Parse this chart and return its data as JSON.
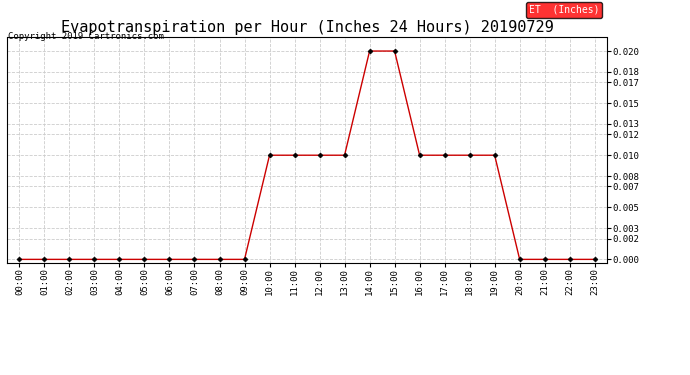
{
  "title": "Evapotranspiration per Hour (Inches 24 Hours) 20190729",
  "copyright": "Copyright 2019 Cartronics.com",
  "legend_label": "ET  (Inches)",
  "legend_bg": "#ff0000",
  "legend_text_color": "#ffffff",
  "line_color": "#cc0000",
  "marker_color": "#000000",
  "background_color": "#ffffff",
  "grid_color": "#cccccc",
  "hours": [
    "00:00",
    "01:00",
    "02:00",
    "03:00",
    "04:00",
    "05:00",
    "06:00",
    "07:00",
    "08:00",
    "09:00",
    "10:00",
    "11:00",
    "12:00",
    "13:00",
    "14:00",
    "15:00",
    "16:00",
    "17:00",
    "18:00",
    "19:00",
    "20:00",
    "21:00",
    "22:00",
    "23:00"
  ],
  "values": [
    0.0,
    0.0,
    0.0,
    0.0,
    0.0,
    0.0,
    0.0,
    0.0,
    0.0,
    0.0,
    0.01,
    0.01,
    0.01,
    0.01,
    0.02,
    0.02,
    0.01,
    0.01,
    0.01,
    0.01,
    0.0,
    0.0,
    0.0,
    0.0
  ],
  "yticks": [
    0.0,
    0.002,
    0.003,
    0.005,
    0.007,
    0.008,
    0.01,
    0.012,
    0.013,
    0.015,
    0.017,
    0.018,
    0.02
  ],
  "ylim": [
    -0.0003,
    0.0213
  ],
  "title_fontsize": 11,
  "copyright_fontsize": 6.5,
  "tick_fontsize": 6.5,
  "legend_fontsize": 7
}
